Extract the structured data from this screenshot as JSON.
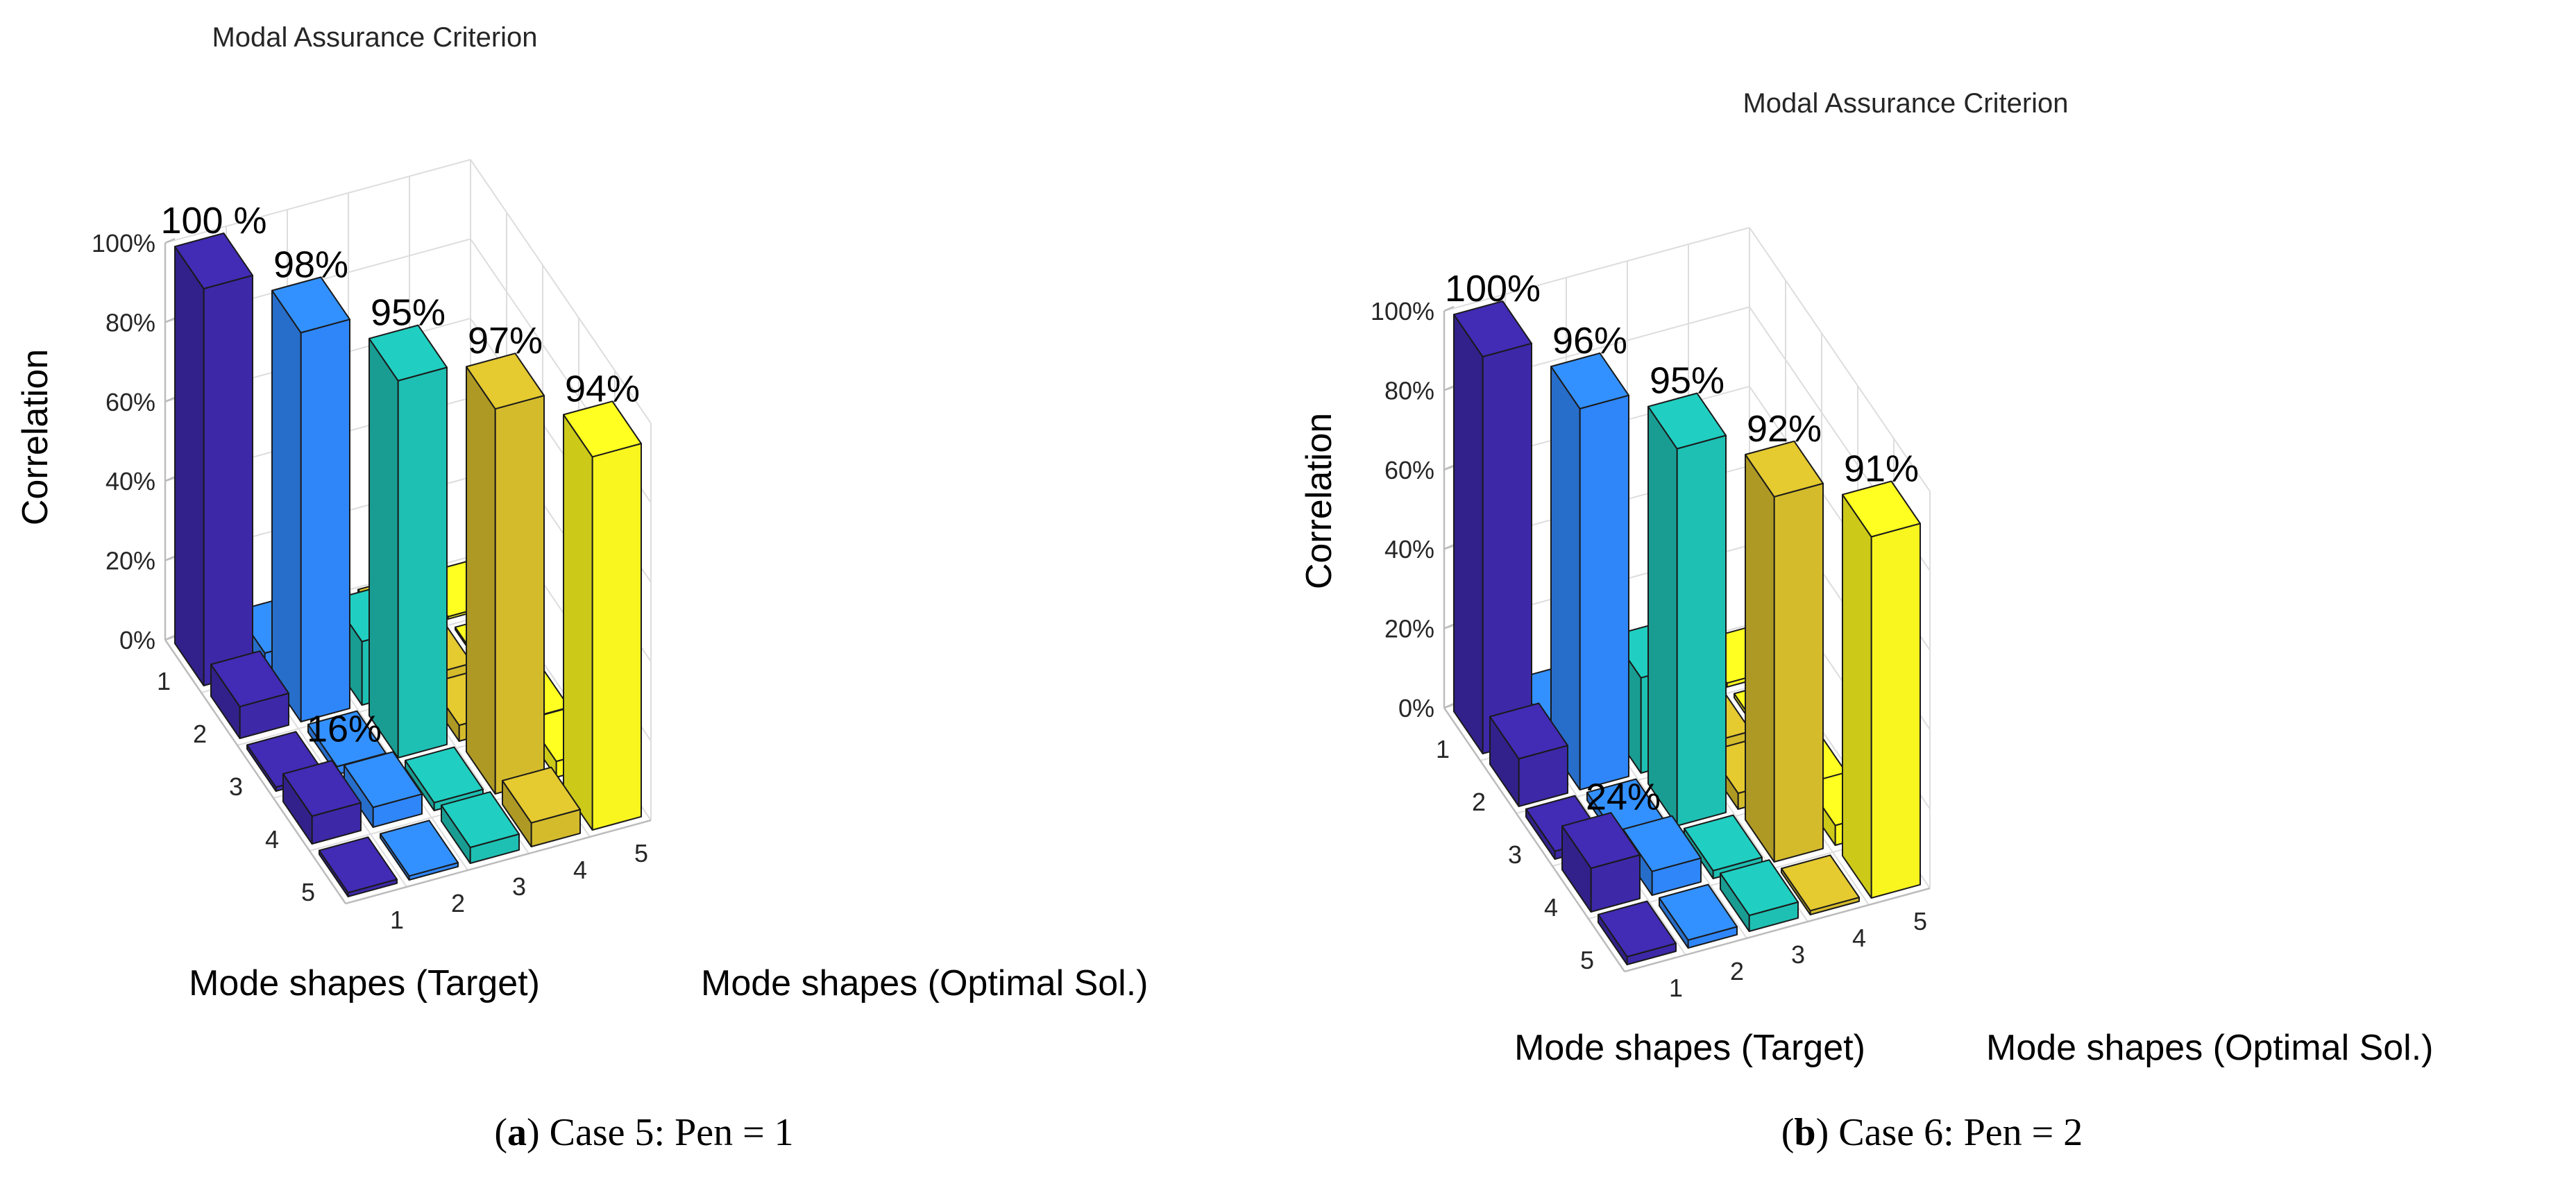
{
  "figure": {
    "caption_a": {
      "open": "(",
      "letter": "a",
      "close": ")",
      "text": " Case 5: Pen = 1"
    },
    "caption_b": {
      "open": "(",
      "letter": "b",
      "close": ")",
      "text": " Case 6: Pen = 2"
    }
  },
  "chart_data": [
    {
      "type": "bar3d",
      "title": "Modal Assurance Criterion",
      "zlabel": "Correlation",
      "xlabel": "Mode shapes (Optimal Sol.)",
      "ylabel": "Mode shapes (Target)",
      "x_ticks": [
        "1",
        "2",
        "3",
        "4",
        "5"
      ],
      "y_ticks": [
        "1",
        "2",
        "3",
        "4",
        "5"
      ],
      "z_ticks": [
        "0%",
        "20%",
        "40%",
        "60%",
        "80%",
        "100%"
      ],
      "zlim": [
        0,
        100
      ],
      "series_colors": [
        "#3d28a8",
        "#2f86f8",
        "#1ec0b3",
        "#d4bb2c",
        "#f9f51f"
      ],
      "matrix": [
        [
          100,
          4,
          2,
          1,
          0
        ],
        [
          8,
          98,
          16,
          3,
          0
        ],
        [
          1,
          2,
          95,
          4,
          1
        ],
        [
          7,
          5,
          2,
          97,
          4
        ],
        [
          1,
          1,
          4,
          6,
          94
        ]
      ],
      "annotations": [
        {
          "x": 1,
          "y": 1,
          "text": "100 %"
        },
        {
          "x": 2,
          "y": 2,
          "text": "98%"
        },
        {
          "x": 3,
          "y": 3,
          "text": "95%"
        },
        {
          "x": 4,
          "y": 4,
          "text": "97%"
        },
        {
          "x": 5,
          "y": 5,
          "text": "94%"
        },
        {
          "x": 2,
          "y": 3,
          "text": "16%"
        }
      ]
    },
    {
      "type": "bar3d",
      "title": "Modal Assurance Criterion",
      "zlabel": "Correlation",
      "xlabel": "Mode shapes (Optimal Sol.)",
      "ylabel": "Mode shapes (Target)",
      "x_ticks": [
        "1",
        "2",
        "3",
        "4",
        "5"
      ],
      "y_ticks": [
        "1",
        "2",
        "3",
        "4",
        "5"
      ],
      "z_ticks": [
        "0%",
        "20%",
        "40%",
        "60%",
        "80%",
        "100%"
      ],
      "zlim": [
        0,
        100
      ],
      "series_colors": [
        "#3d28a8",
        "#2f86f8",
        "#1ec0b3",
        "#d4bb2c",
        "#f9f51f"
      ],
      "matrix": [
        [
          100,
          4,
          3,
          2,
          1
        ],
        [
          12,
          96,
          24,
          3,
          1
        ],
        [
          2,
          2,
          95,
          4,
          1
        ],
        [
          11,
          6,
          2,
          92,
          5
        ],
        [
          2,
          2,
          4,
          1,
          91
        ]
      ],
      "annotations": [
        {
          "x": 1,
          "y": 1,
          "text": "100%"
        },
        {
          "x": 2,
          "y": 2,
          "text": "96%"
        },
        {
          "x": 3,
          "y": 3,
          "text": "95%"
        },
        {
          "x": 4,
          "y": 4,
          "text": "92%"
        },
        {
          "x": 5,
          "y": 5,
          "text": "91%"
        },
        {
          "x": 2,
          "y": 3,
          "text": "24%"
        }
      ]
    }
  ]
}
